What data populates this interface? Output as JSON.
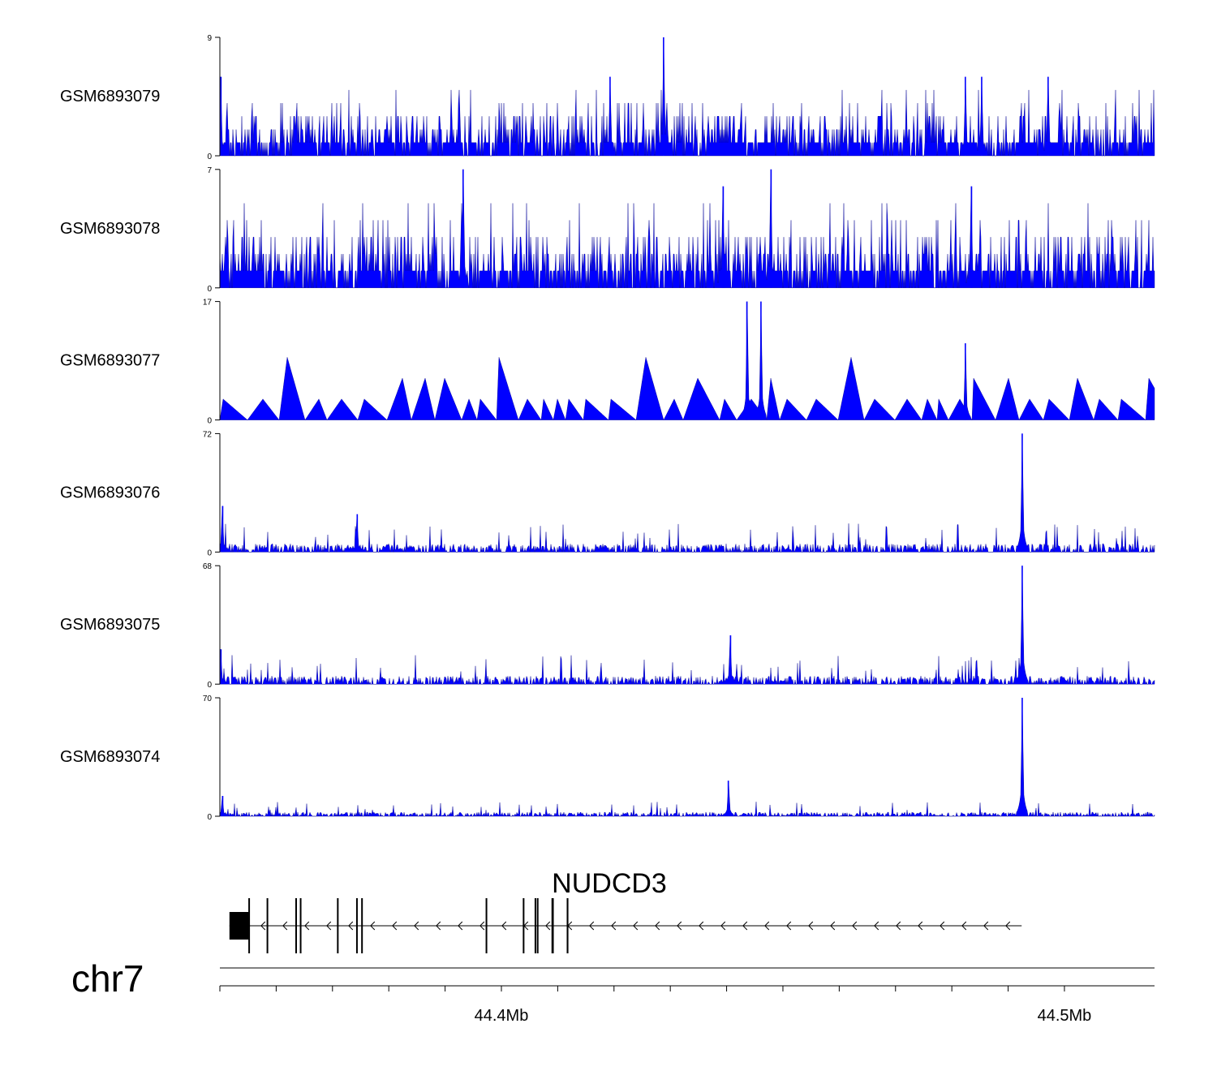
{
  "chart_data": {
    "type": "area",
    "genomic_region": {
      "chrom_label": "chr7",
      "start": 44.35,
      "end": 44.516,
      "unit": "Mb"
    },
    "x_ticks": [
      44.35,
      44.36,
      44.37,
      44.38,
      44.39,
      44.4,
      44.41,
      44.42,
      44.43,
      44.44,
      44.45,
      44.46,
      44.47,
      44.48,
      44.49,
      44.5
    ],
    "x_tick_labels": [
      {
        "value": 44.4,
        "label": "44.4Mb"
      },
      {
        "value": 44.5,
        "label": "44.5Mb"
      }
    ],
    "color": "#0000ff",
    "tracks": [
      {
        "name": "GSM6893079",
        "ylim": [
          0,
          9
        ],
        "ymin_label": "0",
        "ymax_label": "9",
        "pattern": "noise",
        "peaks": [
          {
            "pos": 44.3502,
            "value": 6
          },
          {
            "pos": 44.4288,
            "value": 9
          },
          {
            "pos": 44.4193,
            "value": 6
          },
          {
            "pos": 44.4824,
            "value": 6
          },
          {
            "pos": 44.4853,
            "value": 6
          },
          {
            "pos": 44.4971,
            "value": 6
          }
        ]
      },
      {
        "name": "GSM6893078",
        "ylim": [
          0,
          7
        ],
        "ymin_label": "0",
        "ymax_label": "7",
        "pattern": "noise",
        "peaks": [
          {
            "pos": 44.3932,
            "value": 7
          },
          {
            "pos": 44.4479,
            "value": 7
          },
          {
            "pos": 44.4394,
            "value": 6
          },
          {
            "pos": 44.4835,
            "value": 6
          }
        ]
      },
      {
        "name": "GSM6893077",
        "ylim": [
          0,
          17
        ],
        "ymin_label": "0",
        "ymax_label": "17",
        "pattern": "triangles",
        "peaks": [
          {
            "pos": 44.4436,
            "value": 17
          },
          {
            "pos": 44.4461,
            "value": 17
          },
          {
            "pos": 44.4824,
            "value": 11
          }
        ]
      },
      {
        "name": "GSM6893076",
        "ylim": [
          0,
          72
        ],
        "ymin_label": "0",
        "ymax_label": "72",
        "pattern": "sparse",
        "peaks": [
          {
            "pos": 44.4925,
            "value": 72
          },
          {
            "pos": 44.3505,
            "value": 28
          },
          {
            "pos": 44.3744,
            "value": 23
          }
        ]
      },
      {
        "name": "GSM6893075",
        "ylim": [
          0,
          68
        ],
        "ymin_label": "0",
        "ymax_label": "68",
        "pattern": "sparse",
        "peaks": [
          {
            "pos": 44.4925,
            "value": 68
          },
          {
            "pos": 44.4407,
            "value": 28
          },
          {
            "pos": 44.3502,
            "value": 20
          }
        ]
      },
      {
        "name": "GSM6893074",
        "ylim": [
          0,
          70
        ],
        "ymin_label": "0",
        "ymax_label": "70",
        "pattern": "low",
        "peaks": [
          {
            "pos": 44.4925,
            "value": 70
          },
          {
            "pos": 44.4403,
            "value": 21
          },
          {
            "pos": 44.3505,
            "value": 12
          }
        ]
      }
    ],
    "gene": {
      "name": "NUDCD3",
      "strand": "-",
      "start": 44.3517,
      "end": 44.4924,
      "exons": [
        {
          "start": 44.3517,
          "end": 44.3552,
          "thick": true
        },
        {
          "start": 44.3583,
          "end": 44.3585
        },
        {
          "start": 44.3634,
          "end": 44.3636
        },
        {
          "start": 44.3642,
          "end": 44.3644
        },
        {
          "start": 44.3708,
          "end": 44.3709
        },
        {
          "start": 44.3742,
          "end": 44.3744
        },
        {
          "start": 44.3751,
          "end": 44.3753
        },
        {
          "start": 44.3972,
          "end": 44.3974
        },
        {
          "start": 44.4038,
          "end": 44.4039
        },
        {
          "start": 44.4059,
          "end": 44.4061
        },
        {
          "start": 44.4063,
          "end": 44.4065
        },
        {
          "start": 44.4089,
          "end": 44.4093
        },
        {
          "start": 44.4116,
          "end": 44.4119
        }
      ]
    }
  }
}
